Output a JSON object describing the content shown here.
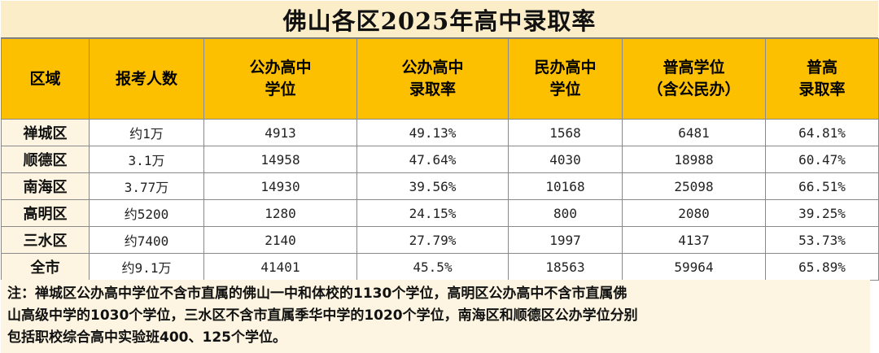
{
  "title": "佛山各区2025年高中录取率",
  "headers": [
    [
      "区域"
    ],
    [
      "报考人数"
    ],
    [
      "公办高中",
      "学位"
    ],
    [
      "公办高中",
      "录取率"
    ],
    [
      "民办高中",
      "学位"
    ],
    [
      "普高学位",
      "（含公民办）"
    ],
    [
      "普高",
      "录取率"
    ]
  ],
  "rows": [
    {
      "region": "禅城区",
      "applicants": "约1万",
      "public_seats": "4913",
      "public_rate": "49.13%",
      "private_seats": "1568",
      "total_seats": "6481",
      "total_rate": "64.81%"
    },
    {
      "region": "顺德区",
      "applicants": "3.1万",
      "public_seats": "14958",
      "public_rate": "47.64%",
      "private_seats": "4030",
      "total_seats": "18988",
      "total_rate": "60.47%"
    },
    {
      "region": "南海区",
      "applicants": "3.77万",
      "public_seats": "14930",
      "public_rate": "39.56%",
      "private_seats": "10168",
      "total_seats": "25098",
      "total_rate": "66.51%"
    },
    {
      "region": "高明区",
      "applicants": "约5200",
      "public_seats": "1280",
      "public_rate": "24.15%",
      "private_seats": "800",
      "total_seats": "2080",
      "total_rate": "39.25%"
    },
    {
      "region": "三水区",
      "applicants": "约7400",
      "public_seats": "2140",
      "public_rate": "27.79%",
      "private_seats": "1997",
      "total_seats": "4137",
      "total_rate": "53.73%"
    },
    {
      "region": "全市",
      "applicants": "约9.1万",
      "public_seats": "41401",
      "public_rate": "45.5%",
      "private_seats": "18563",
      "total_seats": "59964",
      "total_rate": "65.89%"
    }
  ],
  "note": [
    "注：禅城区公办高中学位不含市直属的佛山一中和体校的1130个学位，高明区公办高中不含市直属佛",
    "山高级中学的1030个学位，三水区不含市直属季华中学的1020个学位，南海区和顺德区公办学位分别",
    "包括职校综合高中实验班400、125个学位。"
  ]
}
